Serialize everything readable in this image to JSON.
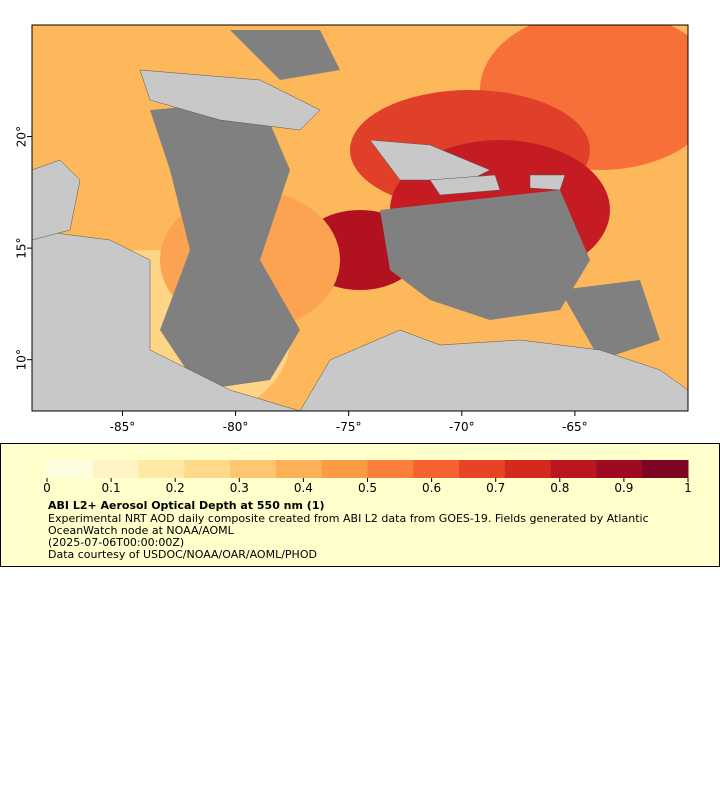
{
  "chart_data": {
    "type": "map",
    "xlim": [
      -89,
      -60
    ],
    "ylim": [
      7.7,
      25
    ],
    "xticks": [
      {
        "value": -85,
        "label": "-85°"
      },
      {
        "value": -80,
        "label": "-80°"
      },
      {
        "value": -75,
        "label": "-75°"
      },
      {
        "value": -70,
        "label": "-70°"
      },
      {
        "value": -65,
        "label": "-65°"
      }
    ],
    "yticks": [
      {
        "value": 10,
        "label": "10°"
      },
      {
        "value": 15,
        "label": "15°"
      },
      {
        "value": 20,
        "label": "20°"
      }
    ],
    "colorbar": {
      "lim": [
        0,
        1
      ],
      "ticks": [
        0,
        0.1,
        0.2,
        0.3,
        0.4,
        0.5,
        0.6,
        0.7,
        0.8,
        0.9,
        1
      ],
      "colors": [
        "#fffde0",
        "#fff3c4",
        "#ffe7a6",
        "#fed98a",
        "#fec66e",
        "#fdb057",
        "#fd9a46",
        "#fb7f3a",
        "#f5612f",
        "#e84325",
        "#d4291f",
        "#bb1520",
        "#9d0a22",
        "#7f0524"
      ]
    },
    "title": "ABI L2+ Aerosol Optical Depth at 550 nm (1)",
    "description": "Experimental NRT AOD daily composite created from ABI L2 data from GOES-19. Fields generated by Atlantic OceanWatch node at NOAA/AOML",
    "time": "(2025-07-06T00:00:00Z)",
    "credit": "Data courtesy of USDOC/NOAA/OAR/AOML/PHOD"
  }
}
